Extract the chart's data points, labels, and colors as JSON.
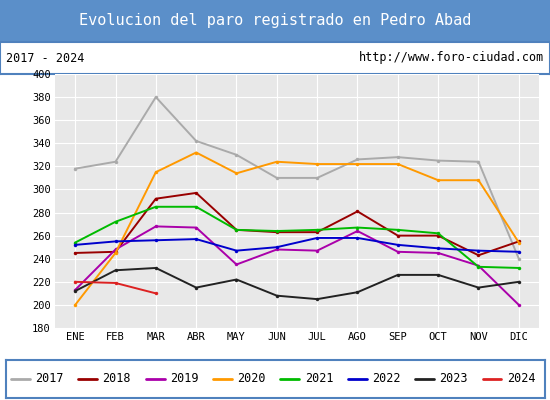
{
  "title": "Evolucion del paro registrado en Pedro Abad",
  "subtitle_left": "2017 - 2024",
  "subtitle_right": "http://www.foro-ciudad.com",
  "xlabel_months": [
    "ENE",
    "FEB",
    "MAR",
    "ABR",
    "MAY",
    "JUN",
    "JUL",
    "AGO",
    "SEP",
    "OCT",
    "NOV",
    "DIC"
  ],
  "ylim": [
    180,
    400
  ],
  "yticks": [
    180,
    200,
    220,
    240,
    260,
    280,
    300,
    320,
    340,
    360,
    380,
    400
  ],
  "series": {
    "2017": {
      "color": "#aaaaaa",
      "data": [
        318,
        324,
        380,
        342,
        330,
        310,
        310,
        326,
        328,
        325,
        324,
        240
      ]
    },
    "2018": {
      "color": "#990000",
      "data": [
        245,
        246,
        292,
        297,
        265,
        263,
        263,
        281,
        260,
        260,
        243,
        255
      ]
    },
    "2019": {
      "color": "#aa00aa",
      "data": [
        213,
        248,
        268,
        267,
        235,
        248,
        247,
        264,
        246,
        245,
        234,
        200
      ]
    },
    "2020": {
      "color": "#ff9900",
      "data": [
        200,
        245,
        315,
        332,
        314,
        324,
        322,
        322,
        322,
        308,
        308,
        254
      ]
    },
    "2021": {
      "color": "#00bb00",
      "data": [
        254,
        272,
        285,
        285,
        265,
        264,
        265,
        267,
        265,
        262,
        233,
        232
      ]
    },
    "2022": {
      "color": "#0000cc",
      "data": [
        252,
        255,
        256,
        257,
        247,
        250,
        258,
        258,
        252,
        249,
        247,
        246
      ]
    },
    "2023": {
      "color": "#222222",
      "data": [
        212,
        230,
        232,
        215,
        222,
        208,
        205,
        211,
        226,
        226,
        215,
        220
      ]
    },
    "2024": {
      "color": "#dd2222",
      "data": [
        220,
        219,
        210,
        null,
        null,
        null,
        null,
        null,
        null,
        null,
        null,
        null
      ]
    }
  },
  "title_bg_color": "#5b8fc9",
  "title_font_color": "#ffffff",
  "title_fontsize": 11,
  "subtitle_fontsize": 8.5,
  "legend_fontsize": 8.5,
  "plot_bg_color": "#e8e8e8",
  "grid_color": "#ffffff",
  "border_color": "#4f81bd"
}
